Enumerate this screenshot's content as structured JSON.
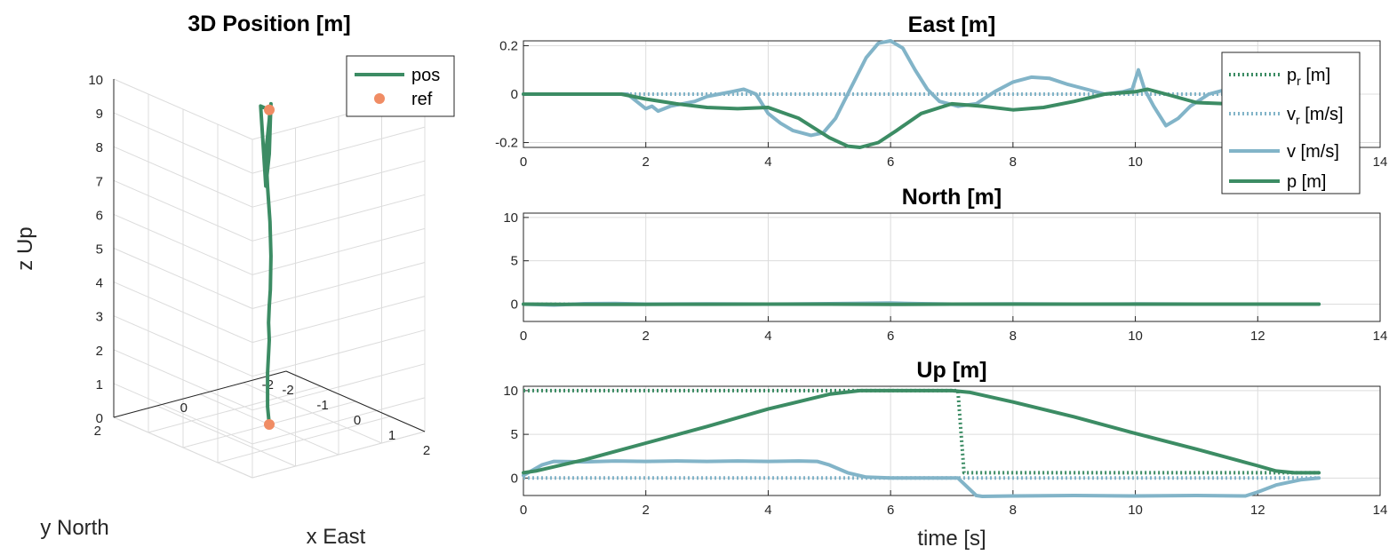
{
  "colors": {
    "p": "#3c8c64",
    "v": "#82b4c8",
    "ref_dot": "#f08c64",
    "grid": "#dcdcdc",
    "axis": "#262626"
  },
  "chart_data": [
    {
      "id": "pos3d",
      "type": "line",
      "projection": "3d",
      "title": "3D Position [m]",
      "xlabel": "x East",
      "ylabel": "y North",
      "zlabel": "z Up",
      "xlim": [
        -2,
        2
      ],
      "ylim": [
        -2,
        2
      ],
      "zlim": [
        0,
        10
      ],
      "x_ticks": [
        "-2",
        "-1",
        "0",
        "1",
        "2"
      ],
      "y_ticks": [
        "-2",
        "0",
        "2"
      ],
      "z_ticks": [
        "0",
        "1",
        "2",
        "3",
        "4",
        "5",
        "6",
        "7",
        "8",
        "9",
        "10"
      ],
      "grid": true,
      "legend": {
        "position": "top-right",
        "entries": [
          "pos",
          "ref"
        ]
      },
      "series": [
        {
          "name": "pos",
          "style": "solid",
          "x": [
            0.0,
            -0.05,
            -0.05,
            0.0,
            -0.02,
            0.0,
            0.03,
            0.05,
            0.02,
            -0.05,
            -0.1,
            -0.05,
            0.0,
            0.02,
            0.05,
            0.03,
            0.0,
            -0.1,
            -0.25,
            0.0
          ],
          "y": [
            0.0,
            0.0,
            0.0,
            0.0,
            0.0,
            0.0,
            0.0,
            0.0,
            0.0,
            0.0,
            0.0,
            0.0,
            0.0,
            0.0,
            0.0,
            0.0,
            0.0,
            0.0,
            0.0,
            0.0
          ],
          "z": [
            0.0,
            0.5,
            1.5,
            2.5,
            3.0,
            3.5,
            4.0,
            5.0,
            6.0,
            7.0,
            8.0,
            8.5,
            9.0,
            9.3,
            9.5,
            9.0,
            8.0,
            7.0,
            9.3,
            9.3
          ]
        },
        {
          "name": "ref",
          "style": "markers",
          "x": [
            0.0,
            0.0
          ],
          "y": [
            0.0,
            0.0
          ],
          "z": [
            0.0,
            9.3
          ]
        }
      ]
    },
    {
      "id": "east",
      "type": "line",
      "title": "East [m]",
      "xlabel": "",
      "ylabel": "",
      "xlim": [
        0,
        14
      ],
      "ylim": [
        -0.22,
        0.22
      ],
      "x_ticks": [
        "0",
        "2",
        "4",
        "6",
        "8",
        "10",
        "12",
        "14"
      ],
      "y_ticks": [
        "-0.2",
        "0",
        "0.2"
      ],
      "grid": true,
      "legend": {
        "position": "top-right",
        "entries": [
          "p_r [m]",
          "v_r [m/s]",
          "v [m/s]",
          "p [m]"
        ]
      },
      "series": [
        {
          "name": "p_r [m]",
          "style": "dotted",
          "color": "p",
          "x": [
            0,
            13
          ],
          "y": [
            0,
            0
          ]
        },
        {
          "name": "v_r [m/s]",
          "style": "dotted",
          "color": "v",
          "x": [
            0,
            13
          ],
          "y": [
            0,
            0
          ]
        },
        {
          "name": "v [m/s]",
          "style": "solid",
          "color": "v",
          "x": [
            0,
            1.7,
            1.9,
            2.0,
            2.1,
            2.2,
            2.4,
            2.6,
            2.8,
            3.0,
            3.2,
            3.4,
            3.6,
            3.8,
            4.0,
            4.2,
            4.4,
            4.7,
            4.9,
            5.1,
            5.3,
            5.6,
            5.8,
            6.0,
            6.2,
            6.4,
            6.6,
            6.8,
            7.1,
            7.4,
            7.7,
            8.0,
            8.3,
            8.6,
            8.9,
            9.2,
            9.5,
            9.8,
            9.95,
            10.05,
            10.15,
            10.3,
            10.5,
            10.7,
            10.9,
            11.2,
            11.5,
            11.8,
            12.0,
            12.3
          ],
          "y": [
            0,
            0,
            -0.04,
            -0.06,
            -0.05,
            -0.07,
            -0.05,
            -0.04,
            -0.03,
            -0.01,
            0.0,
            0.01,
            0.02,
            0.0,
            -0.08,
            -0.12,
            -0.15,
            -0.17,
            -0.16,
            -0.1,
            0.0,
            0.15,
            0.21,
            0.22,
            0.19,
            0.1,
            0.02,
            -0.03,
            -0.05,
            -0.04,
            0.01,
            0.05,
            0.07,
            0.065,
            0.04,
            0.02,
            0.0,
            0.01,
            0.02,
            0.1,
            0.02,
            -0.05,
            -0.13,
            -0.1,
            -0.05,
            0.0,
            0.02,
            0.02,
            0.03,
            0.04
          ]
        },
        {
          "name": "p [m]",
          "style": "solid",
          "color": "p",
          "x": [
            0,
            1.6,
            2.0,
            2.5,
            3.0,
            3.5,
            4.0,
            4.5,
            5.0,
            5.3,
            5.5,
            5.8,
            6.1,
            6.5,
            7.0,
            7.5,
            8.0,
            8.5,
            9.0,
            9.5,
            10.0,
            10.2,
            10.5,
            11.0,
            11.5,
            12.0
          ],
          "y": [
            0,
            0,
            -0.02,
            -0.04,
            -0.055,
            -0.06,
            -0.055,
            -0.1,
            -0.18,
            -0.215,
            -0.22,
            -0.2,
            -0.15,
            -0.08,
            -0.04,
            -0.05,
            -0.065,
            -0.055,
            -0.03,
            0.0,
            0.01,
            0.02,
            0.0,
            -0.035,
            -0.04,
            -0.03
          ]
        }
      ]
    },
    {
      "id": "north",
      "type": "line",
      "title": "North [m]",
      "xlabel": "",
      "ylabel": "",
      "xlim": [
        0,
        14
      ],
      "ylim": [
        -2,
        10.5
      ],
      "x_ticks": [
        "0",
        "2",
        "4",
        "6",
        "8",
        "10",
        "12",
        "14"
      ],
      "y_ticks": [
        "0",
        "5",
        "10"
      ],
      "grid": true,
      "series": [
        {
          "name": "p_r [m]",
          "style": "dotted",
          "color": "p",
          "x": [
            0,
            13
          ],
          "y": [
            0,
            0
          ]
        },
        {
          "name": "v_r [m/s]",
          "style": "dotted",
          "color": "v",
          "x": [
            0,
            13
          ],
          "y": [
            0,
            0
          ]
        },
        {
          "name": "v [m/s]",
          "style": "solid",
          "color": "v",
          "x": [
            0,
            0.5,
            1.0,
            1.5,
            2.0,
            3.0,
            4.0,
            5.0,
            6.0,
            6.5,
            7.0,
            8.0,
            9.0,
            10.0,
            11.0,
            12.0,
            13.0
          ],
          "y": [
            0,
            -0.1,
            0.05,
            0.08,
            0.0,
            0.02,
            0.0,
            0.05,
            0.12,
            0.05,
            0.0,
            0.03,
            0.0,
            0.02,
            0.0,
            0.0,
            0.0
          ]
        },
        {
          "name": "p [m]",
          "style": "solid",
          "color": "p",
          "x": [
            0,
            1.0,
            2.0,
            3.0,
            4.0,
            5.0,
            6.0,
            7.0,
            8.0,
            9.0,
            10.0,
            11.0,
            12.0,
            13.0
          ],
          "y": [
            0,
            -0.03,
            -0.02,
            -0.01,
            0.0,
            0.0,
            -0.03,
            0.0,
            0.0,
            0.0,
            0.0,
            0.0,
            0.0,
            0.0
          ]
        }
      ]
    },
    {
      "id": "up",
      "type": "line",
      "title": "Up [m]",
      "xlabel": "time [s]",
      "ylabel": "",
      "xlim": [
        0,
        14
      ],
      "ylim": [
        -2,
        10.5
      ],
      "x_ticks": [
        "0",
        "2",
        "4",
        "6",
        "8",
        "10",
        "12",
        "14"
      ],
      "y_ticks": [
        "0",
        "5",
        "10"
      ],
      "grid": true,
      "series": [
        {
          "name": "p_r [m]",
          "style": "dotted",
          "color": "p",
          "x": [
            0,
            7.1,
            7.2,
            13.0
          ],
          "y": [
            10,
            10,
            0.6,
            0.6
          ]
        },
        {
          "name": "v_r [m/s]",
          "style": "dotted",
          "color": "v",
          "x": [
            0,
            13.0
          ],
          "y": [
            0,
            0
          ]
        },
        {
          "name": "v [m/s]",
          "style": "solid",
          "color": "v",
          "x": [
            0,
            0.3,
            0.5,
            1.0,
            1.5,
            2.0,
            2.5,
            3.0,
            3.5,
            4.0,
            4.5,
            4.8,
            5.0,
            5.3,
            5.6,
            6.0,
            7.0,
            7.1,
            7.4,
            7.5,
            8.0,
            9.0,
            10.0,
            11.0,
            11.8,
            12.0,
            12.3,
            12.7,
            13.0
          ],
          "y": [
            0.3,
            1.5,
            1.9,
            1.85,
            1.95,
            1.9,
            1.95,
            1.9,
            1.95,
            1.9,
            1.95,
            1.9,
            1.5,
            0.6,
            0.1,
            0.0,
            0.0,
            0.0,
            -2.0,
            -2.1,
            -2.05,
            -2.0,
            -2.05,
            -2.0,
            -2.05,
            -1.6,
            -0.8,
            -0.2,
            0.0
          ]
        },
        {
          "name": "p [m]",
          "style": "solid",
          "color": "p",
          "x": [
            0,
            0.2,
            1.0,
            2.0,
            3.0,
            4.0,
            5.0,
            5.5,
            6.0,
            7.0,
            7.3,
            8.0,
            9.0,
            10.0,
            11.0,
            12.0,
            12.3,
            12.6,
            13.0
          ],
          "y": [
            0.6,
            0.8,
            2.1,
            4.0,
            5.9,
            7.9,
            9.6,
            10.0,
            10.0,
            10.0,
            9.8,
            8.7,
            7.0,
            5.1,
            3.3,
            1.4,
            0.8,
            0.6,
            0.6
          ]
        }
      ]
    }
  ]
}
